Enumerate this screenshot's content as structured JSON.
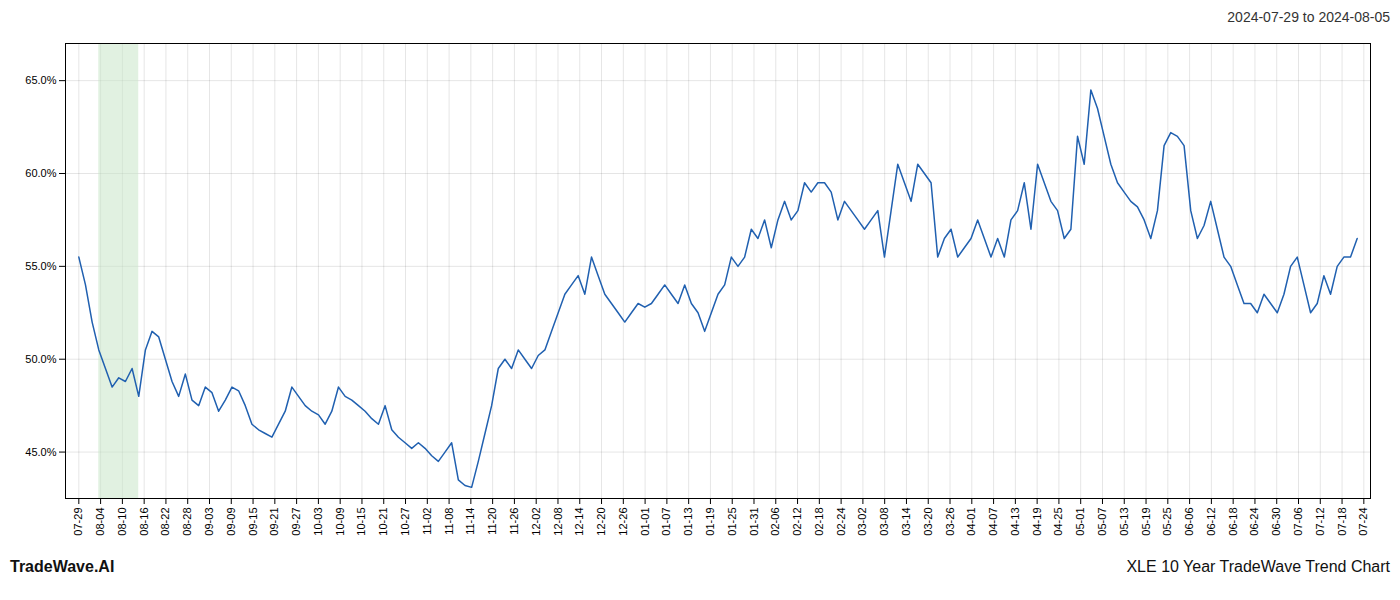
{
  "chart_data": {
    "type": "line",
    "title": "XLE 10 Year TradeWave Trend Chart",
    "subtitle": "2024-07-29 to 2024-08-05",
    "annotation": "TradeWave.AI",
    "color": "#2060b0",
    "grid": true,
    "x": [
      0,
      1,
      2,
      3,
      4,
      5,
      6,
      7,
      8,
      9,
      10,
      11,
      12,
      13,
      14,
      15,
      16,
      17,
      18,
      19,
      20,
      21,
      22,
      23,
      24,
      25,
      26,
      27,
      28,
      29,
      30,
      31,
      32,
      33,
      34,
      35,
      36,
      37,
      38,
      39,
      40,
      41,
      42,
      43,
      44,
      45,
      46,
      47,
      48,
      49,
      50,
      51,
      52,
      53,
      54,
      55,
      56,
      57,
      58,
      59,
      60,
      61,
      62,
      63,
      64,
      65,
      66,
      67,
      68,
      69,
      70,
      71,
      72,
      73,
      74,
      75,
      76,
      77,
      78,
      79,
      80,
      81,
      82,
      83,
      84,
      85,
      86,
      87,
      88,
      89,
      90,
      91,
      92,
      93,
      94,
      95,
      96,
      97,
      98,
      99,
      100,
      101,
      102,
      103,
      104,
      105,
      106,
      107,
      108,
      109,
      110,
      111,
      112,
      113,
      114,
      115,
      116,
      117,
      118,
      119,
      120,
      121,
      122,
      123,
      124,
      125,
      126,
      127,
      128,
      129,
      130,
      131,
      132,
      133,
      134,
      135,
      136,
      137,
      138,
      139,
      140,
      141,
      142,
      143,
      144,
      145,
      146,
      147,
      148,
      149,
      150,
      151,
      152,
      153,
      154,
      155,
      156,
      157,
      158,
      159,
      160,
      161,
      162,
      163,
      164,
      165,
      166,
      167,
      168,
      169,
      170,
      171,
      172,
      173,
      174,
      175,
      176,
      177,
      178,
      179,
      180,
      181,
      182,
      183,
      184,
      185,
      186,
      187,
      188,
      189,
      190,
      191,
      192
    ],
    "values": [
      55.5,
      54.0,
      52.0,
      50.5,
      49.5,
      48.5,
      49.0,
      48.8,
      49.5,
      48.0,
      50.5,
      51.5,
      51.2,
      50.0,
      48.8,
      48.0,
      49.2,
      47.8,
      47.5,
      48.5,
      48.2,
      47.2,
      47.8,
      48.5,
      48.3,
      47.5,
      46.5,
      46.2,
      46.0,
      45.8,
      46.5,
      47.2,
      48.5,
      48.0,
      47.5,
      47.2,
      47.0,
      46.5,
      47.2,
      48.5,
      48.0,
      47.8,
      47.5,
      47.2,
      46.8,
      46.5,
      47.5,
      46.2,
      45.8,
      45.5,
      45.2,
      45.5,
      45.2,
      44.8,
      44.5,
      45.0,
      45.5,
      43.5,
      43.2,
      43.1,
      44.5,
      46.0,
      47.5,
      49.5,
      50.0,
      49.5,
      50.5,
      50.0,
      49.5,
      50.2,
      50.5,
      51.5,
      52.5,
      53.5,
      54.0,
      54.5,
      53.5,
      55.5,
      54.5,
      53.5,
      53.0,
      52.5,
      52.0,
      52.5,
      53.0,
      52.8,
      53.0,
      53.5,
      54.0,
      53.5,
      53.0,
      54.0,
      53.0,
      52.5,
      51.5,
      52.5,
      53.5,
      54.0,
      55.5,
      55.0,
      55.5,
      57.0,
      56.5,
      57.5,
      56.0,
      57.5,
      58.5,
      57.5,
      58.0,
      59.5,
      59.0,
      59.5,
      59.5,
      59.0,
      57.5,
      58.5,
      58.0,
      57.5,
      57.0,
      57.5,
      58.0,
      55.5,
      58.0,
      60.5,
      59.5,
      58.5,
      60.5,
      60.0,
      59.5,
      55.5,
      56.5,
      57.0,
      55.5,
      56.0,
      56.5,
      57.5,
      56.5,
      55.5,
      56.5,
      55.5,
      57.5,
      58.0,
      59.5,
      57.0,
      60.5,
      59.5,
      58.5,
      58.0,
      56.5,
      57.0,
      62.0,
      60.5,
      64.5,
      63.5,
      62.0,
      60.5,
      59.5,
      59.0,
      58.5,
      58.2,
      57.5,
      56.5,
      58.0,
      61.5,
      62.2,
      62.0,
      61.5,
      58.0,
      56.5,
      57.2,
      58.5,
      57.0,
      55.5,
      55.0,
      54.0,
      53.0,
      53.0,
      52.5,
      53.5,
      53.0,
      52.5,
      53.5,
      55.0,
      55.5,
      54.0,
      52.5,
      53.0,
      54.5,
      53.5,
      55.0,
      55.5,
      55.5,
      56.5
    ],
    "xlim": [
      -2,
      194
    ],
    "xticks": [
      {
        "value": 0,
        "label": "07-29"
      },
      {
        "value": 3.2712,
        "label": "08-04"
      },
      {
        "value": 6.5424,
        "label": "08-10"
      },
      {
        "value": 9.8136,
        "label": "08-16"
      },
      {
        "value": 13.0847,
        "label": "08-22"
      },
      {
        "value": 16.3559,
        "label": "08-28"
      },
      {
        "value": 19.6271,
        "label": "09-03"
      },
      {
        "value": 22.8983,
        "label": "09-09"
      },
      {
        "value": 26.1695,
        "label": "09-15"
      },
      {
        "value": 29.4407,
        "label": "09-21"
      },
      {
        "value": 32.7119,
        "label": "09-27"
      },
      {
        "value": 35.9831,
        "label": "10-03"
      },
      {
        "value": 39.2542,
        "label": "10-09"
      },
      {
        "value": 42.5254,
        "label": "10-15"
      },
      {
        "value": 45.7966,
        "label": "10-21"
      },
      {
        "value": 49.0678,
        "label": "10-27"
      },
      {
        "value": 52.339,
        "label": "11-02"
      },
      {
        "value": 55.6102,
        "label": "11-08"
      },
      {
        "value": 58.8814,
        "label": "11-14"
      },
      {
        "value": 62.1525,
        "label": "11-20"
      },
      {
        "value": 65.4237,
        "label": "11-26"
      },
      {
        "value": 68.6949,
        "label": "12-02"
      },
      {
        "value": 71.9661,
        "label": "12-08"
      },
      {
        "value": 75.2373,
        "label": "12-14"
      },
      {
        "value": 78.5085,
        "label": "12-20"
      },
      {
        "value": 81.7797,
        "label": "12-26"
      },
      {
        "value": 85.0508,
        "label": "01-01"
      },
      {
        "value": 88.322,
        "label": "01-07"
      },
      {
        "value": 91.5932,
        "label": "01-13"
      },
      {
        "value": 94.8644,
        "label": "01-19"
      },
      {
        "value": 98.1356,
        "label": "01-25"
      },
      {
        "value": 101.4068,
        "label": "01-31"
      },
      {
        "value": 104.678,
        "label": "02-06"
      },
      {
        "value": 107.9492,
        "label": "02-12"
      },
      {
        "value": 111.2203,
        "label": "02-18"
      },
      {
        "value": 114.4915,
        "label": "02-24"
      },
      {
        "value": 117.7627,
        "label": "03-02"
      },
      {
        "value": 121.0339,
        "label": "03-08"
      },
      {
        "value": 124.3051,
        "label": "03-14"
      },
      {
        "value": 127.5763,
        "label": "03-20"
      },
      {
        "value": 130.8475,
        "label": "03-26"
      },
      {
        "value": 134.1186,
        "label": "04-01"
      },
      {
        "value": 137.3898,
        "label": "04-07"
      },
      {
        "value": 140.661,
        "label": "04-13"
      },
      {
        "value": 143.9322,
        "label": "04-19"
      },
      {
        "value": 147.2034,
        "label": "04-25"
      },
      {
        "value": 150.4746,
        "label": "05-01"
      },
      {
        "value": 153.7458,
        "label": "05-07"
      },
      {
        "value": 157.0169,
        "label": "05-13"
      },
      {
        "value": 160.2881,
        "label": "05-19"
      },
      {
        "value": 163.5593,
        "label": "05-25"
      },
      {
        "value": 166.8305,
        "label": "06-06"
      },
      {
        "value": 170.1017,
        "label": "06-12"
      },
      {
        "value": 173.3729,
        "label": "06-18"
      },
      {
        "value": 176.6441,
        "label": "06-24"
      },
      {
        "value": 179.9153,
        "label": "06-30"
      },
      {
        "value": 183.1864,
        "label": "07-06"
      },
      {
        "value": 186.4576,
        "label": "07-12"
      },
      {
        "value": 189.7288,
        "label": "07-18"
      },
      {
        "value": 193,
        "label": "07-24"
      }
    ],
    "ylim": [
      42.5,
      67.0
    ],
    "yticks": [
      {
        "value": 45.0,
        "label": "45.0%"
      },
      {
        "value": 50.0,
        "label": "50.0%"
      },
      {
        "value": 55.0,
        "label": "55.0%"
      },
      {
        "value": 60.0,
        "label": "60.0%"
      },
      {
        "value": 65.0,
        "label": "65.0%"
      }
    ],
    "highlight": {
      "start": 3,
      "end": 9,
      "color": "#c8e6c9"
    }
  }
}
